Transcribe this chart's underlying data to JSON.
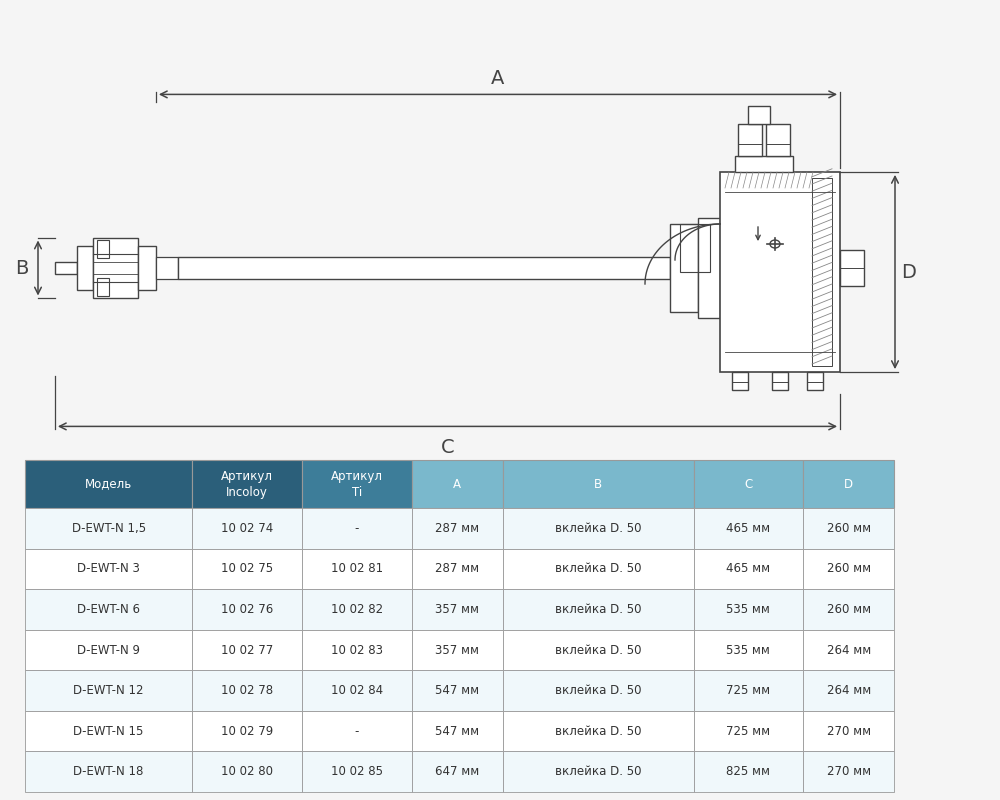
{
  "table_headers": [
    "Модель",
    "Артикул\nIncoloy",
    "Артикул\nTi",
    "A",
    "B",
    "C",
    "D"
  ],
  "table_rows": [
    [
      "D-EWT-N 1,5",
      "10 02 74",
      "-",
      "287 мм",
      "вклейка D. 50",
      "465 мм",
      "260 мм"
    ],
    [
      "D-EWT-N 3",
      "10 02 75",
      "10 02 81",
      "287 мм",
      "вклейка D. 50",
      "465 мм",
      "260 мм"
    ],
    [
      "D-EWT-N 6",
      "10 02 76",
      "10 02 82",
      "357 мм",
      "вклейка D. 50",
      "535 мм",
      "260 мм"
    ],
    [
      "D-EWT-N 9",
      "10 02 77",
      "10 02 83",
      "357 мм",
      "вклейка D. 50",
      "535 мм",
      "264 мм"
    ],
    [
      "D-EWT-N 12",
      "10 02 78",
      "10 02 84",
      "547 мм",
      "вклейка D. 50",
      "725 мм",
      "264 мм"
    ],
    [
      "D-EWT-N 15",
      "10 02 79",
      "-",
      "547 мм",
      "вклейка D. 50",
      "725 мм",
      "270 мм"
    ],
    [
      "D-EWT-N 18",
      "10 02 80",
      "10 02 85",
      "647 мм",
      "вклейка D. 50",
      "825 мм",
      "270 мм"
    ]
  ],
  "header_bg_colors": [
    "#2b5f7a",
    "#2b5f7a",
    "#3d7d99",
    "#7ab8cc",
    "#7ab8cc",
    "#7ab8cc",
    "#7ab8cc"
  ],
  "header_text_color": "#ffffff",
  "row_text_color": "#333333",
  "border_color": "#999999",
  "fig_bg": "#f5f5f5",
  "dim_line_color": "#444444",
  "diagram_bg": "#f5f5f5"
}
